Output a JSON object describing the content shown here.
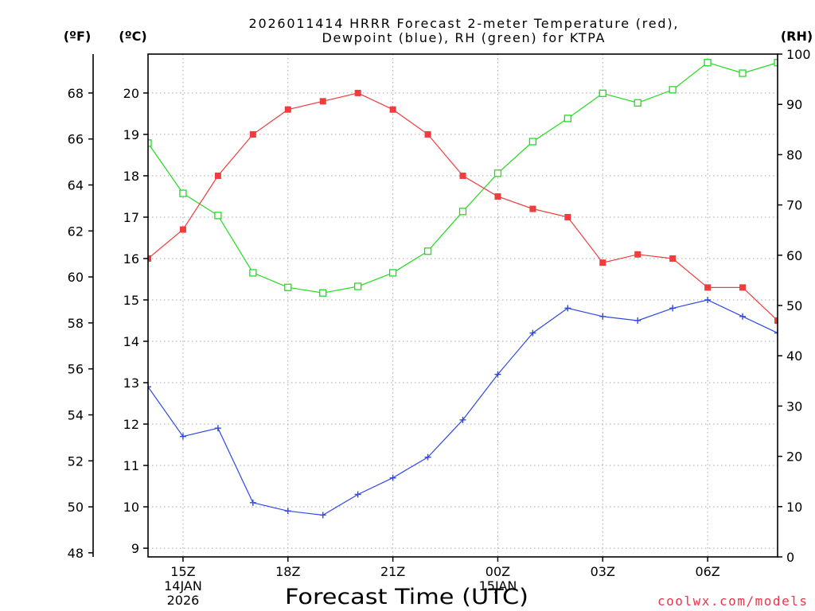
{
  "chart_data": {
    "type": "line",
    "title": [
      "2026011414 HRRR Forecast 2-meter Temperature (red),",
      "Dewpoint (blue), RH (green) for KTPA"
    ],
    "xlabel": "Forecast Time (UTC)",
    "xlim": [
      0,
      18
    ],
    "x": [
      0,
      1,
      2,
      3,
      4,
      5,
      6,
      7,
      8,
      9,
      10,
      11,
      12,
      13,
      14,
      15,
      16,
      17,
      18
    ],
    "x_ticks": [
      {
        "x": 1,
        "lines": [
          "15Z",
          "14JAN",
          "2026"
        ]
      },
      {
        "x": 4,
        "lines": [
          "18Z"
        ]
      },
      {
        "x": 7,
        "lines": [
          "21Z"
        ]
      },
      {
        "x": 10,
        "lines": [
          "00Z",
          "15JAN"
        ]
      },
      {
        "x": 13,
        "lines": [
          "03Z"
        ]
      },
      {
        "x": 16,
        "lines": [
          "06Z"
        ]
      }
    ],
    "grid": true,
    "y_axes": {
      "fahrenheit": {
        "label": "(ºF)",
        "ticks": [
          48,
          50,
          52,
          54,
          56,
          58,
          60,
          62,
          64,
          66,
          68
        ]
      },
      "celsius": {
        "label": "(ºC)",
        "ylim": [
          8.79,
          20.94
        ],
        "ticks": [
          9,
          10,
          11,
          12,
          13,
          14,
          15,
          16,
          17,
          18,
          19,
          20
        ]
      },
      "rh": {
        "label": "(RH)",
        "ylim": [
          0,
          100
        ],
        "ticks": [
          0,
          10,
          20,
          30,
          40,
          50,
          60,
          70,
          80,
          90,
          100
        ]
      }
    },
    "series": {
      "temperature_c": {
        "color": "#f03c3c",
        "values": [
          16.0,
          16.7,
          18.0,
          19.0,
          19.6,
          19.8,
          20.0,
          19.6,
          19.0,
          18.0,
          17.5,
          17.2,
          17.0,
          15.9,
          16.1,
          16.0,
          15.3,
          15.3,
          14.5
        ]
      },
      "dewpoint_c": {
        "color": "#2f48e8",
        "values": [
          12.9,
          11.7,
          11.9,
          10.1,
          9.9,
          9.8,
          10.3,
          10.7,
          11.2,
          12.1,
          13.2,
          14.2,
          14.8,
          14.6,
          14.5,
          14.8,
          15.0,
          14.6,
          14.2
        ]
      },
      "rh_pct": {
        "color": "#20dc20",
        "values": [
          82.3,
          72.3,
          67.9,
          56.5,
          53.6,
          52.5,
          53.8,
          56.5,
          60.8,
          68.7,
          76.3,
          82.6,
          87.2,
          92.2,
          90.3,
          92.9,
          98.3,
          96.2,
          98.3
        ]
      }
    }
  },
  "credit": {
    "text": "coolwx.com/models",
    "color": "#e8364a"
  }
}
